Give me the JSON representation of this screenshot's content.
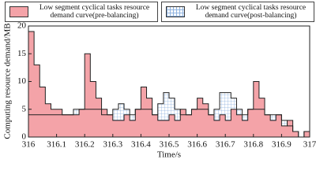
{
  "chart_data": {
    "type": "step-area",
    "xlabel": "Time/s",
    "ylabel": "Computing resource demand/MB",
    "x": [
      316.0,
      316.02,
      316.04,
      316.06,
      316.08,
      316.1,
      316.12,
      316.14,
      316.16,
      316.18,
      316.2,
      316.22,
      316.24,
      316.26,
      316.28,
      316.3,
      316.32,
      316.34,
      316.36,
      316.38,
      316.4,
      316.42,
      316.44,
      316.46,
      316.48,
      316.5,
      316.52,
      316.54,
      316.56,
      316.58,
      316.6,
      316.62,
      316.64,
      316.66,
      316.68,
      316.7,
      316.72,
      316.74,
      316.76,
      316.78,
      316.8,
      316.82,
      316.84,
      316.86,
      316.88,
      316.9,
      316.92,
      316.94,
      316.96,
      316.98
    ],
    "series": [
      {
        "name": "Low segment cyclical tasks resource demand curve(pre-balancing)",
        "color": "#f4a3a8",
        "values": [
          19,
          13,
          9,
          6,
          5,
          5,
          4,
          4,
          4,
          5,
          15,
          10,
          7,
          5,
          4,
          3,
          3,
          4,
          3,
          5,
          9,
          7,
          4,
          3,
          3,
          4,
          3,
          5,
          4,
          5,
          7,
          6,
          4,
          3,
          4,
          3,
          5,
          4,
          3,
          5,
          10,
          7,
          4,
          3,
          4,
          2,
          3,
          1,
          0,
          1
        ]
      },
      {
        "name": "Low segment cyclical tasks resource demand curve(post-balancing)",
        "color": "#8fb3e0",
        "values": [
          4,
          4,
          4,
          4,
          4,
          4,
          4,
          4,
          5,
          5,
          5,
          5,
          5,
          4,
          4,
          5,
          6,
          5,
          4,
          5,
          5,
          5,
          4,
          6,
          8,
          7,
          5,
          4,
          4,
          5,
          5,
          5,
          4,
          5,
          8,
          8,
          7,
          5,
          4,
          5,
          5,
          5,
          4,
          4,
          4,
          3,
          2,
          1,
          0,
          1
        ]
      }
    ],
    "xlim": [
      316,
      317
    ],
    "xticks": [
      316,
      316.1,
      316.2,
      316.3,
      316.4,
      316.5,
      316.6,
      316.7,
      316.8,
      316.9,
      317
    ],
    "ylim": [
      0,
      20
    ],
    "yticks": [
      0,
      5,
      10,
      15,
      20
    ]
  }
}
